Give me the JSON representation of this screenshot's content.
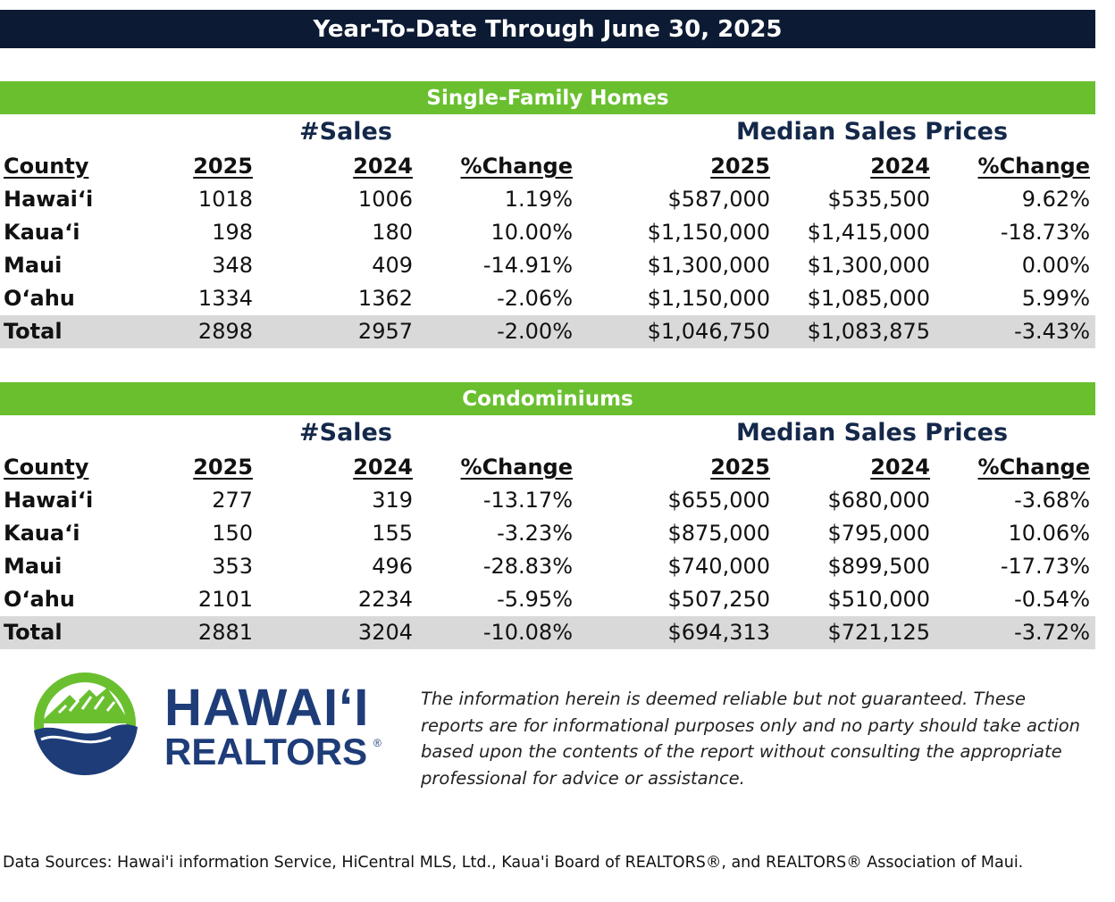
{
  "title": "Year-To-Date Through June 30, 2025",
  "group_labels": {
    "sales": "#Sales",
    "prices": "Median Sales Prices"
  },
  "headers": [
    "County",
    "2025",
    "2024",
    "%Change",
    "2025",
    "2024",
    "%Change"
  ],
  "single_family": {
    "title": "Single-Family Homes",
    "rows": [
      [
        "Hawaiʻi",
        "1018",
        "1006",
        "1.19%",
        "$587,000",
        "$535,500",
        "9.62%"
      ],
      [
        "Kauaʻi",
        "198",
        "180",
        "10.00%",
        "$1,150,000",
        "$1,415,000",
        "-18.73%"
      ],
      [
        "Maui",
        "348",
        "409",
        "-14.91%",
        "$1,300,000",
        "$1,300,000",
        "0.00%"
      ],
      [
        "Oʻahu",
        "1334",
        "1362",
        "-2.06%",
        "$1,150,000",
        "$1,085,000",
        "5.99%"
      ]
    ],
    "total": [
      "Total",
      "2898",
      "2957",
      "-2.00%",
      "$1,046,750",
      "$1,083,875",
      "-3.43%"
    ]
  },
  "condominiums": {
    "title": "Condominiums",
    "rows": [
      [
        "Hawaiʻi",
        "277",
        "319",
        "-13.17%",
        "$655,000",
        "$680,000",
        "-3.68%"
      ],
      [
        "Kauaʻi",
        "150",
        "155",
        "-3.23%",
        "$875,000",
        "$795,000",
        "10.06%"
      ],
      [
        "Maui",
        "353",
        "496",
        "-28.83%",
        "$740,000",
        "$899,500",
        "-17.73%"
      ],
      [
        "Oʻahu",
        "2101",
        "2234",
        "-5.95%",
        "$507,250",
        "$510,000",
        "-0.54%"
      ]
    ],
    "total": [
      "Total",
      "2881",
      "3204",
      "-10.08%",
      "$694,313",
      "$721,125",
      "-3.72%"
    ]
  },
  "logo": {
    "line1": "HAWAIʻI",
    "line2": "REALTORS",
    "registered": "®"
  },
  "disclaimer": "The information herein is deemed reliable but not guaranteed. These reports are for informational purposes only and no party should take action based upon the contents of the report without consulting the appropriate professional for advice or assistance.",
  "sources": "Data Sources: Hawai'i information Service, HiCentral MLS, Ltd., Kaua'i Board of REALTORS®, and REALTORS® Association of Maui.",
  "colors": {
    "navy": "#0c1a33",
    "green": "#6abf2f",
    "total_row": "#d9d9d9",
    "logo_blue": "#1d3c78"
  }
}
